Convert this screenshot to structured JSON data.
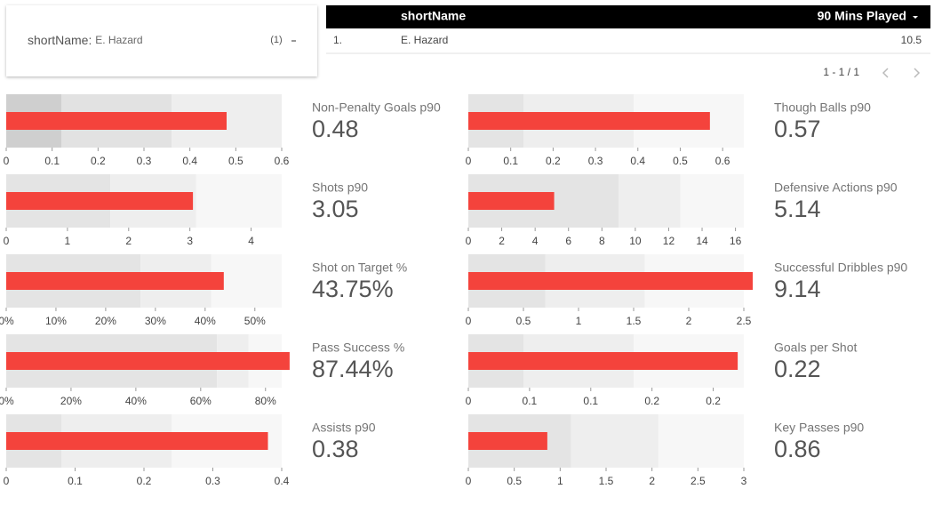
{
  "filter": {
    "label": "shortName",
    "value": "E. Hazard",
    "count": "(1)"
  },
  "table": {
    "columns": [
      "shortName",
      "90 Mins Played"
    ],
    "rows": [
      [
        "1.",
        "E. Hazard",
        10.5
      ]
    ],
    "pagination": "1 - 1 / 1"
  },
  "chart_data": [
    {
      "type": "bullet",
      "title": "Non-Penalty Goals p90",
      "value": 0.48,
      "color": "#f4433c",
      "xlim": [
        0,
        0.6
      ],
      "xticks": [
        0,
        0.1,
        0.2,
        0.3,
        0.4,
        0.5,
        0.6
      ],
      "ranges": [
        0.12,
        0.36,
        0.6
      ],
      "band_colors": [
        "#cfcfcf",
        "#e2e2e2",
        "#eeeeee"
      ]
    },
    {
      "type": "bullet",
      "title": "Shots p90",
      "value": 3.05,
      "color": "#f4433c",
      "xlim": [
        0,
        4.5
      ],
      "xticks": [
        0,
        1,
        2,
        3,
        4
      ],
      "ranges": [
        1.7,
        3.1,
        4.5
      ],
      "band_colors": [
        "#e4e4e4",
        "#eeeeee",
        "#f7f7f7"
      ]
    },
    {
      "type": "bullet",
      "title": "Shot on Target %",
      "value": 43.75,
      "value_label": "43.75%",
      "color": "#f4433c",
      "xlim": [
        0,
        55.4
      ],
      "xticks": [
        {
          "value": 0,
          "label": "0%"
        },
        {
          "value": 10,
          "label": "10%"
        },
        {
          "value": 20,
          "label": "20%"
        },
        {
          "value": 30,
          "label": "30%"
        },
        {
          "value": 40,
          "label": "40%"
        },
        {
          "value": 50,
          "label": "50%"
        }
      ],
      "ranges": [
        27,
        41.25,
        55.4
      ],
      "band_colors": [
        "#e4e4e4",
        "#eeeeee",
        "#f7f7f7"
      ]
    },
    {
      "type": "bullet",
      "title": "Pass Success %",
      "value": 87.44,
      "value_label": "87.44%",
      "color": "#f4433c",
      "xlim": [
        0,
        85
      ],
      "xticks": [
        {
          "value": 0,
          "label": "0%"
        },
        {
          "value": 20,
          "label": "20%"
        },
        {
          "value": 40,
          "label": "40%"
        },
        {
          "value": 60,
          "label": "60%"
        },
        {
          "value": 80,
          "label": "80%"
        }
      ],
      "ranges": [
        65,
        74.8,
        85
      ],
      "band_colors": [
        "#e4e4e4",
        "#eeeeee",
        "#f7f7f7"
      ]
    },
    {
      "type": "bullet",
      "title": "Assists p90",
      "value": 0.38,
      "color": "#f4433c",
      "xlim": [
        0,
        0.4
      ],
      "xticks": [
        0,
        0.1,
        0.2,
        0.3,
        0.4
      ],
      "ranges": [
        0.08,
        0.24,
        0.4
      ],
      "band_colors": [
        "#e4e4e4",
        "#eeeeee",
        "#f7f7f7"
      ]
    },
    {
      "type": "bullet",
      "title": "Though Balls p90",
      "value": 0.57,
      "color": "#f4433c",
      "xlim": [
        0,
        0.65
      ],
      "xticks": [
        0,
        0.1,
        0.2,
        0.3,
        0.4,
        0.5,
        0.6
      ],
      "ranges": [
        0.13,
        0.39,
        0.65
      ],
      "band_colors": [
        "#e4e4e4",
        "#eeeeee",
        "#f7f7f7"
      ]
    },
    {
      "type": "bullet",
      "title": "Defensive Actions p90",
      "value": 5.14,
      "color": "#f4433c",
      "xlim": [
        0,
        16.5
      ],
      "xticks": [
        0,
        2,
        4,
        6,
        8,
        10,
        12,
        14,
        16
      ],
      "ranges": [
        9,
        12.7,
        16.5
      ],
      "band_colors": [
        "#e4e4e4",
        "#eeeeee",
        "#f7f7f7"
      ]
    },
    {
      "type": "bullet",
      "title": "Successful Dribbles p90",
      "value": 9.14,
      "color": "#f4433c",
      "xlim": [
        0,
        2.5
      ],
      "xticks": [
        0,
        0.5,
        1,
        1.5,
        2,
        2.5
      ],
      "ranges": [
        0.7,
        1.6,
        2.5
      ],
      "band_colors": [
        "#e4e4e4",
        "#eeeeee",
        "#f7f7f7"
      ]
    },
    {
      "type": "bullet",
      "title": "Goals per Shot",
      "value": 0.22,
      "color": "#f4433c",
      "xlim": [
        0,
        0.225
      ],
      "xticks": [
        0,
        {
          "value": 0.05,
          "label": "0.1"
        },
        0.1,
        {
          "value": 0.15,
          "label": "0.2"
        },
        0.2
      ],
      "ranges": [
        0.045,
        0.135,
        0.225
      ],
      "band_colors": [
        "#e4e4e4",
        "#eeeeee",
        "#f7f7f7"
      ]
    },
    {
      "type": "bullet",
      "title": "Key Passes p90",
      "value": 0.86,
      "color": "#f4433c",
      "xlim": [
        0,
        3
      ],
      "xticks": [
        0,
        0.5,
        1,
        1.5,
        2,
        2.5,
        3
      ],
      "ranges": [
        1.12,
        2.07,
        3
      ],
      "band_colors": [
        "#e4e4e4",
        "#eeeeee",
        "#f7f7f7"
      ]
    }
  ]
}
